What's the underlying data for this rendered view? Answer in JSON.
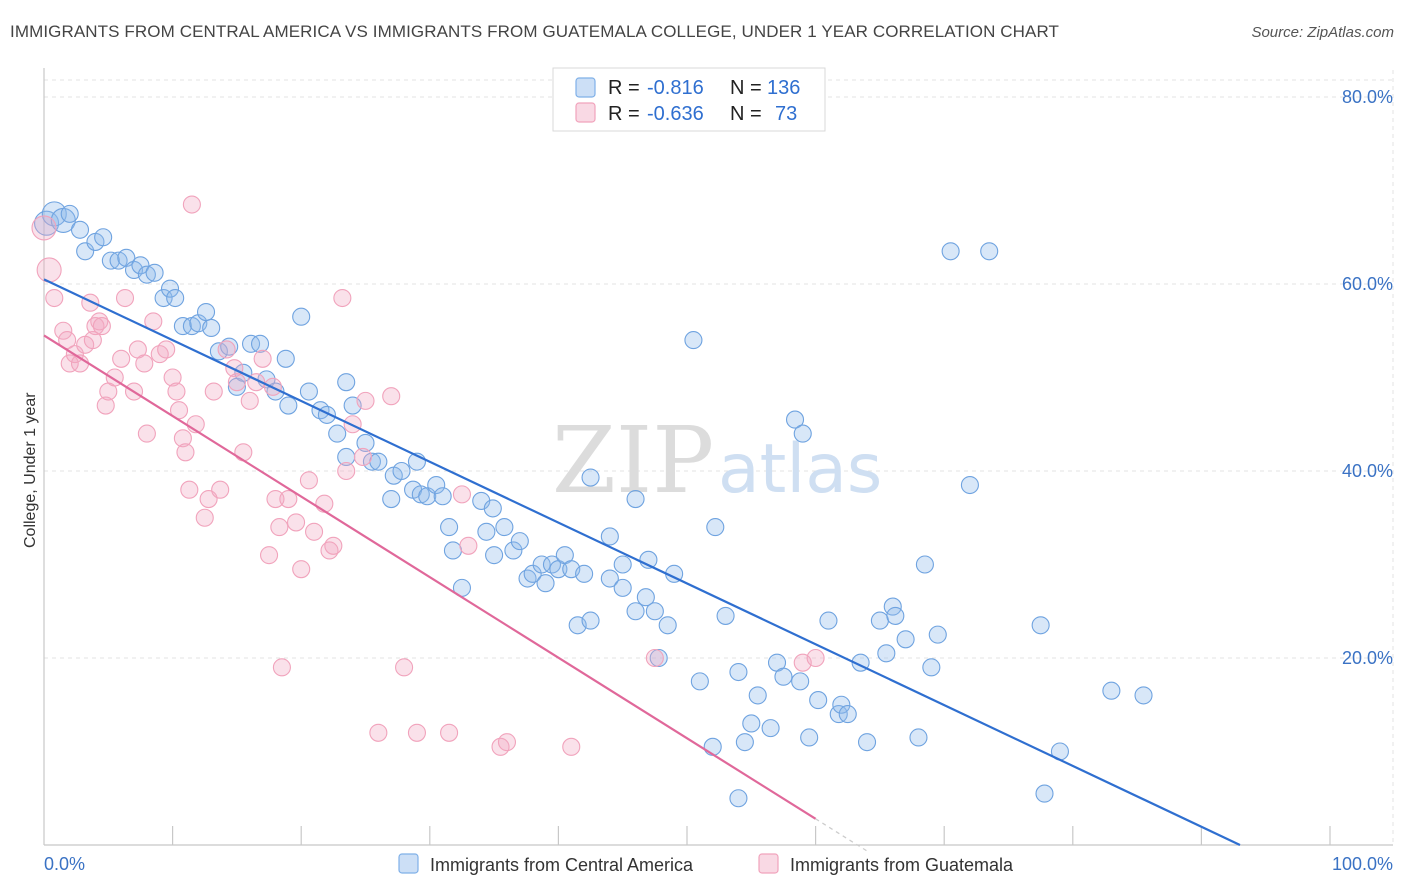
{
  "title": "IMMIGRANTS FROM CENTRAL AMERICA VS IMMIGRANTS FROM GUATEMALA COLLEGE, UNDER 1 YEAR CORRELATION CHART",
  "source": "Source: ZipAtlas.com",
  "watermark": {
    "zip": "ZIP",
    "atlas": "atlas"
  },
  "legend": {
    "r_label": "R =",
    "n_label": "N =",
    "rows": [
      {
        "r": "-0.816",
        "n": "136",
        "color": "#7fb0e8"
      },
      {
        "r": "-0.636",
        "n": "73",
        "color": "#f1a3bc"
      }
    ]
  },
  "chart_data": {
    "type": "scatter",
    "title": "IMMIGRANTS FROM CENTRAL AMERICA VS IMMIGRANTS FROM GUATEMALA COLLEGE, UNDER 1 YEAR CORRELATION CHART",
    "xlabel": "",
    "ylabel": "College, Under 1 year",
    "xlim": [
      0,
      100
    ],
    "ylim": [
      0,
      80
    ],
    "x_tick_labels": [
      "0.0%",
      "100.0%"
    ],
    "y_tick_labels": [
      "20.0%",
      "40.0%",
      "60.0%",
      "80.0%"
    ],
    "y_ticks": [
      20,
      40,
      60,
      80
    ],
    "grid": true,
    "legend_position": "bottom",
    "series": [
      {
        "name": "Immigrants from Central America",
        "color": "#6fa3e0",
        "line_color": "#2f6fd0",
        "trend": {
          "x": [
            0,
            93
          ],
          "y": [
            60.5,
            0
          ]
        },
        "points": [
          [
            0.2,
            66.5
          ],
          [
            0.8,
            67.5
          ],
          [
            1.5,
            66.8
          ],
          [
            2,
            67.5
          ],
          [
            2.8,
            65.8
          ],
          [
            3.2,
            63.5
          ],
          [
            4,
            64.5
          ],
          [
            4.6,
            65
          ],
          [
            5.2,
            62.5
          ],
          [
            5.8,
            62.5
          ],
          [
            6.4,
            62.8
          ],
          [
            7,
            61.5
          ],
          [
            7.5,
            62
          ],
          [
            8,
            61
          ],
          [
            8.6,
            61.2
          ],
          [
            9.3,
            58.5
          ],
          [
            9.8,
            59.5
          ],
          [
            10.2,
            58.5
          ],
          [
            10.8,
            55.5
          ],
          [
            11.5,
            55.5
          ],
          [
            12,
            55.8
          ],
          [
            12.6,
            57
          ],
          [
            13,
            55.3
          ],
          [
            13.6,
            52.8
          ],
          [
            14.4,
            53.3
          ],
          [
            15,
            49
          ],
          [
            15.5,
            50.5
          ],
          [
            16.1,
            53.6
          ],
          [
            16.8,
            53.6
          ],
          [
            17.3,
            49.8
          ],
          [
            18,
            48.5
          ],
          [
            18.8,
            52
          ],
          [
            19,
            47
          ],
          [
            20,
            56.5
          ],
          [
            20.6,
            48.5
          ],
          [
            21.5,
            46.5
          ],
          [
            22,
            46
          ],
          [
            22.8,
            44
          ],
          [
            23.5,
            49.5
          ],
          [
            23.5,
            41.5
          ],
          [
            24,
            47
          ],
          [
            25,
            43
          ],
          [
            25.5,
            41
          ],
          [
            26,
            41
          ],
          [
            27,
            37
          ],
          [
            27.2,
            39.5
          ],
          [
            27.8,
            40
          ],
          [
            28.7,
            38
          ],
          [
            29,
            41
          ],
          [
            29.3,
            37.5
          ],
          [
            29.8,
            37.3
          ],
          [
            30.5,
            38.5
          ],
          [
            31,
            37.3
          ],
          [
            31.5,
            34
          ],
          [
            31.8,
            31.5
          ],
          [
            32.5,
            27.5
          ],
          [
            34,
            36.8
          ],
          [
            34.4,
            33.5
          ],
          [
            34.9,
            36
          ],
          [
            35,
            31
          ],
          [
            35.8,
            34
          ],
          [
            36.5,
            31.5
          ],
          [
            37,
            32.5
          ],
          [
            37.6,
            28.5
          ],
          [
            38,
            29
          ],
          [
            38.7,
            30
          ],
          [
            39,
            28
          ],
          [
            39.5,
            30
          ],
          [
            40,
            29.5
          ],
          [
            40.5,
            31
          ],
          [
            41,
            29.5
          ],
          [
            42,
            29
          ],
          [
            41.5,
            23.5
          ],
          [
            42.5,
            24
          ],
          [
            44,
            28.5
          ],
          [
            44,
            33
          ],
          [
            42.5,
            39.3
          ],
          [
            45,
            27.5
          ],
          [
            45,
            30
          ],
          [
            46,
            37
          ],
          [
            46,
            25
          ],
          [
            46.8,
            26.5
          ],
          [
            47,
            30.5
          ],
          [
            47.5,
            25
          ],
          [
            47.8,
            20
          ],
          [
            48.5,
            23.5
          ],
          [
            49,
            29
          ],
          [
            50.5,
            54
          ],
          [
            51,
            17.5
          ],
          [
            52.2,
            34
          ],
          [
            52,
            10.5
          ],
          [
            53,
            24.5
          ],
          [
            54,
            18.5
          ],
          [
            54,
            5
          ],
          [
            54.5,
            11
          ],
          [
            55,
            13
          ],
          [
            55.5,
            16
          ],
          [
            56.5,
            12.5
          ],
          [
            57,
            19.5
          ],
          [
            57.5,
            18
          ],
          [
            58.4,
            45.5
          ],
          [
            58.8,
            17.5
          ],
          [
            59,
            44
          ],
          [
            59.5,
            11.5
          ],
          [
            60.2,
            15.5
          ],
          [
            61,
            24
          ],
          [
            61.8,
            14
          ],
          [
            62,
            15
          ],
          [
            62.5,
            14
          ],
          [
            63.5,
            19.5
          ],
          [
            64,
            11
          ],
          [
            65,
            24
          ],
          [
            65.5,
            20.5
          ],
          [
            66,
            25.5
          ],
          [
            66.2,
            24.5
          ],
          [
            67,
            22
          ],
          [
            68,
            11.5
          ],
          [
            68.5,
            30
          ],
          [
            69,
            19
          ],
          [
            69.5,
            22.5
          ],
          [
            70.5,
            63.5
          ],
          [
            72,
            38.5
          ],
          [
            73.5,
            63.5
          ],
          [
            77.5,
            23.5
          ],
          [
            77.8,
            5.5
          ],
          [
            79,
            10
          ],
          [
            83,
            16.5
          ],
          [
            85.5,
            16
          ]
        ]
      },
      {
        "name": "Immigrants from Guatemala",
        "color": "#f1a3bc",
        "line_color": "#e0689a",
        "trend": {
          "x": [
            0,
            60
          ],
          "y": [
            54.5,
            2.8
          ]
        },
        "points": [
          [
            0,
            66
          ],
          [
            0.4,
            61.5
          ],
          [
            0.8,
            58.5
          ],
          [
            1.5,
            55
          ],
          [
            1.8,
            54
          ],
          [
            2,
            51.5
          ],
          [
            2.4,
            52.5
          ],
          [
            2.8,
            51.5
          ],
          [
            3.2,
            53.5
          ],
          [
            3.6,
            58
          ],
          [
            3.8,
            54
          ],
          [
            4,
            55.5
          ],
          [
            4.3,
            56
          ],
          [
            4.5,
            55.5
          ],
          [
            4.8,
            47
          ],
          [
            5,
            48.5
          ],
          [
            5.5,
            50
          ],
          [
            6,
            52
          ],
          [
            6.3,
            58.5
          ],
          [
            7,
            48.5
          ],
          [
            7.3,
            53
          ],
          [
            7.8,
            51.5
          ],
          [
            8,
            44
          ],
          [
            8.5,
            56
          ],
          [
            9,
            52.5
          ],
          [
            9.5,
            53
          ],
          [
            10,
            50
          ],
          [
            10.3,
            48.5
          ],
          [
            10.5,
            46.5
          ],
          [
            10.8,
            43.5
          ],
          [
            11,
            42
          ],
          [
            11.3,
            38
          ],
          [
            11.8,
            45
          ],
          [
            12.5,
            35
          ],
          [
            12.8,
            37
          ],
          [
            13.2,
            48.5
          ],
          [
            13.7,
            38
          ],
          [
            14.2,
            53
          ],
          [
            14.8,
            51
          ],
          [
            15,
            49.5
          ],
          [
            15.5,
            42
          ],
          [
            16,
            47.5
          ],
          [
            16.5,
            49.5
          ],
          [
            17,
            52
          ],
          [
            17.5,
            31
          ],
          [
            17.8,
            49
          ],
          [
            18,
            37
          ],
          [
            18.3,
            34
          ],
          [
            18.5,
            19
          ],
          [
            19,
            37
          ],
          [
            19.6,
            34.5
          ],
          [
            20,
            29.5
          ],
          [
            20.6,
            39
          ],
          [
            21,
            33.5
          ],
          [
            21.8,
            36.5
          ],
          [
            22.2,
            31.5
          ],
          [
            22.5,
            32
          ],
          [
            23.2,
            58.5
          ],
          [
            23.5,
            40
          ],
          [
            24,
            45
          ],
          [
            24.8,
            41.5
          ],
          [
            25,
            47.5
          ],
          [
            26,
            12
          ],
          [
            27,
            48
          ],
          [
            28,
            19
          ],
          [
            29,
            12
          ],
          [
            31.5,
            12
          ],
          [
            32.5,
            37.5
          ],
          [
            33,
            32
          ],
          [
            35.5,
            10.5
          ],
          [
            36,
            11
          ],
          [
            41,
            10.5
          ],
          [
            47.5,
            20
          ],
          [
            59,
            19.5
          ],
          [
            60,
            20
          ],
          [
            11.5,
            68.5
          ]
        ]
      }
    ]
  },
  "bottom_legend": [
    {
      "label": "Immigrants from Central America",
      "color": "#7fb0e8"
    },
    {
      "label": "Immigrants from Guatemala",
      "color": "#f1a3bc"
    }
  ]
}
